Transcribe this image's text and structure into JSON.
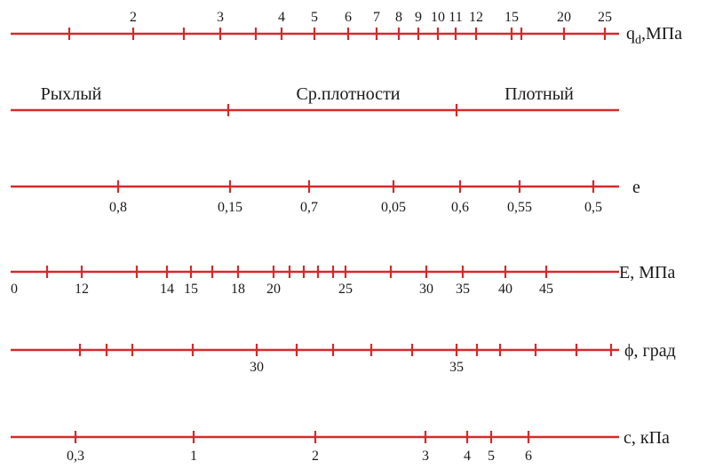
{
  "line_color": "#d42a2a",
  "scales": [
    {
      "id": "qd",
      "name_main": "q",
      "name_sub": "d",
      "name_rest": ",МПа",
      "labels_above": true,
      "ticks": [
        {
          "label": ""
        },
        {
          "label": "2"
        },
        {
          "label": ""
        },
        {
          "label": "3"
        },
        {
          "label": ""
        },
        {
          "label": "4"
        },
        {
          "label": "5"
        },
        {
          "label": "6"
        },
        {
          "label": "7"
        },
        {
          "label": "8"
        },
        {
          "label": "9"
        },
        {
          "label": "10"
        },
        {
          "label": "11"
        },
        {
          "label": "12"
        },
        {
          "label": "15"
        },
        {
          "label": ""
        },
        {
          "label": "20"
        },
        {
          "label": "25"
        }
      ]
    },
    {
      "id": "density",
      "zones": [
        "Рыхлый",
        "Ср.плотности",
        "Плотный"
      ]
    },
    {
      "id": "e",
      "name_main": "e",
      "ticks": [
        {
          "label": "0,8"
        },
        {
          "label": "0,15"
        },
        {
          "label": "0,7"
        },
        {
          "label": "0,05"
        },
        {
          "label": "0,6"
        },
        {
          "label": "0,55"
        },
        {
          "label": "0,5"
        }
      ]
    },
    {
      "id": "E",
      "name_main": "E, МПа",
      "start_label": "0",
      "ticks": [
        {
          "label": ""
        },
        {
          "label": "12"
        },
        {
          "label": ""
        },
        {
          "label": "14"
        },
        {
          "label": "15"
        },
        {
          "label": ""
        },
        {
          "label": "18"
        },
        {
          "label": "20"
        },
        {
          "label": ""
        },
        {
          "label": ""
        },
        {
          "label": ""
        },
        {
          "label": ""
        },
        {
          "label": "25"
        },
        {
          "label": ""
        },
        {
          "label": "30"
        },
        {
          "label": "35"
        },
        {
          "label": "40"
        },
        {
          "label": "45"
        }
      ]
    },
    {
      "id": "phi",
      "name_main": "ϕ, град",
      "ticks": [
        {
          "label": ""
        },
        {
          "label": ""
        },
        {
          "label": ""
        },
        {
          "label": ""
        },
        {
          "label": "30"
        },
        {
          "label": ""
        },
        {
          "label": ""
        },
        {
          "label": ""
        },
        {
          "label": ""
        },
        {
          "label": "35"
        },
        {
          "label": ""
        },
        {
          "label": ""
        },
        {
          "label": ""
        },
        {
          "label": ""
        },
        {
          "label": ""
        }
      ]
    },
    {
      "id": "c",
      "name_main": "с,  кПа",
      "ticks": [
        {
          "label": "0,3"
        },
        {
          "label": "1"
        },
        {
          "label": "2"
        },
        {
          "label": "3"
        },
        {
          "label": "4"
        },
        {
          "label": "5"
        },
        {
          "label": "6"
        }
      ]
    }
  ]
}
